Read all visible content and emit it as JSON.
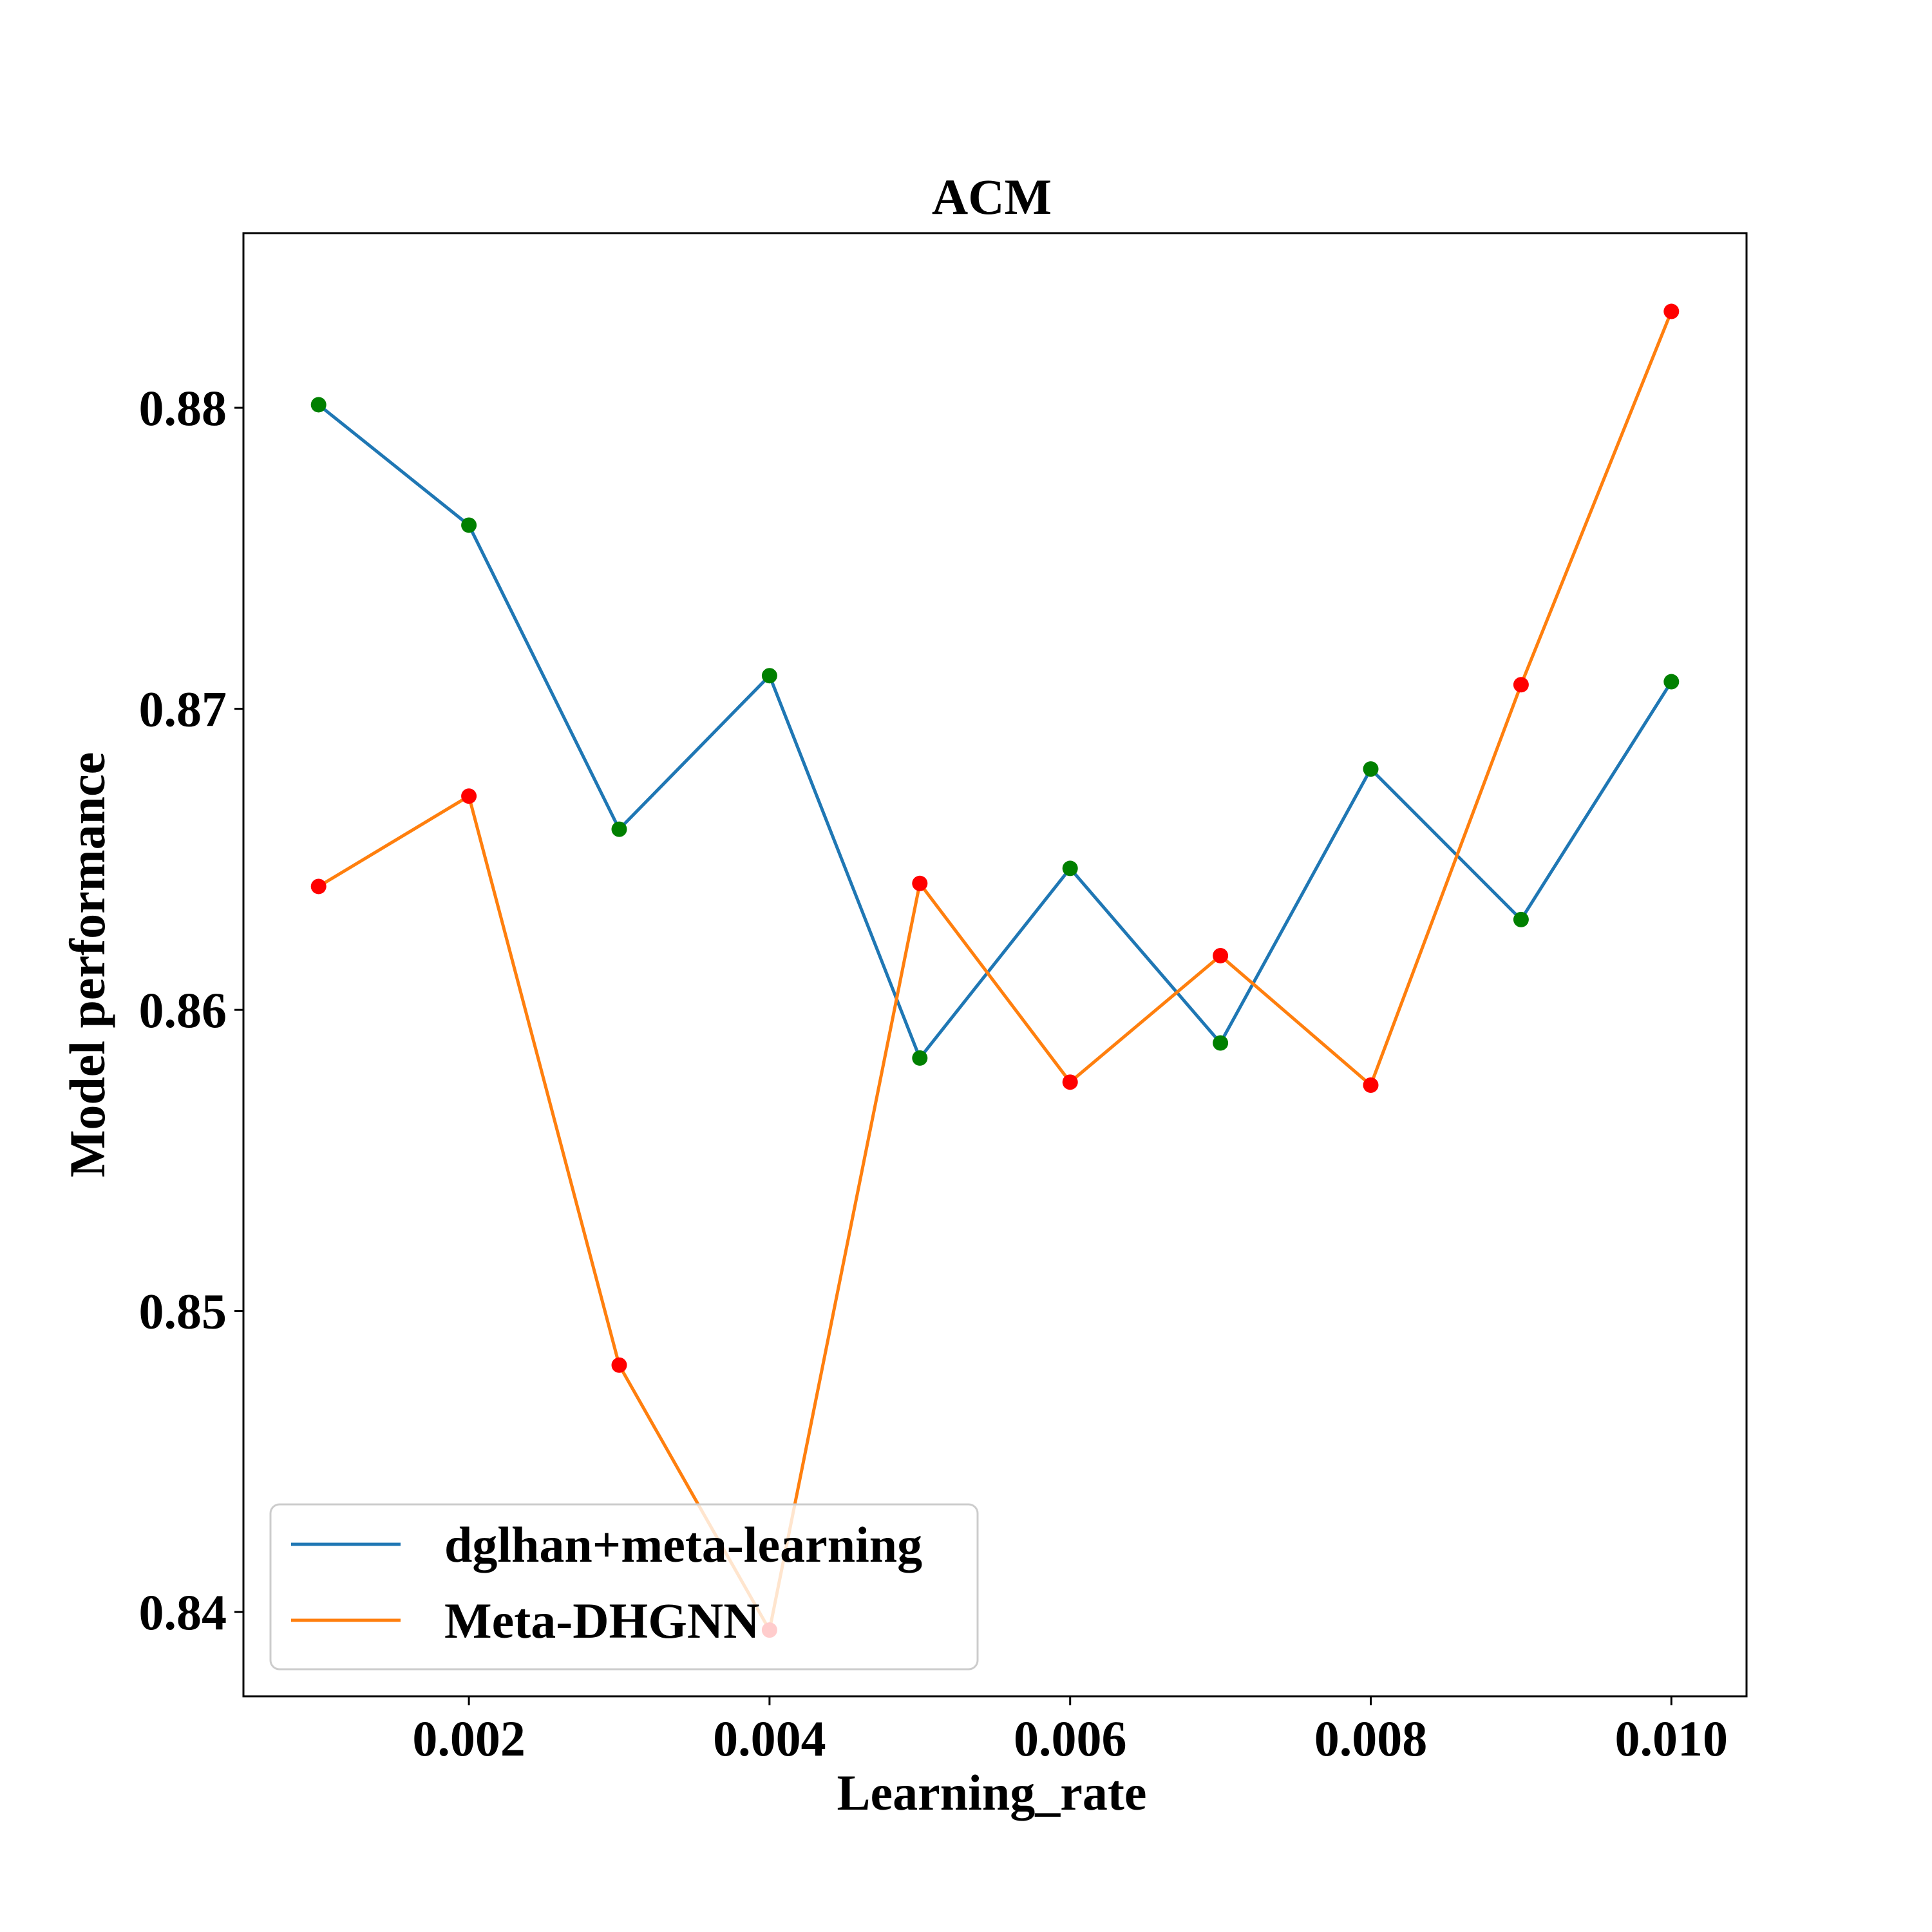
{
  "chart_data": {
    "type": "line",
    "title": "ACM",
    "xlabel": "Learning_rate",
    "ylabel": "Model performance",
    "x": [
      0.001,
      0.002,
      0.003,
      0.004,
      0.005,
      0.006,
      0.007,
      0.008,
      0.009,
      0.01
    ],
    "xlim": [
      0.0005,
      0.0105
    ],
    "ylim": [
      0.8372,
      0.8858
    ],
    "xticks": [
      0.002,
      0.004,
      0.006,
      0.008,
      0.01
    ],
    "xtick_labels": [
      "0.002",
      "0.004",
      "0.006",
      "0.008",
      "0.010"
    ],
    "yticks": [
      0.84,
      0.85,
      0.86,
      0.87,
      0.88
    ],
    "ytick_labels": [
      "0.84",
      "0.85",
      "0.86",
      "0.87",
      "0.88"
    ],
    "grid": false,
    "legend_position": "lower-left",
    "series": [
      {
        "name": "dglhan+meta-learning",
        "values": [
          0.8801,
          0.8761,
          0.866,
          0.8711,
          0.8584,
          0.8647,
          0.8589,
          0.868,
          0.863,
          0.8709
        ],
        "line_color": "#1f77b4",
        "marker_color": "#008000"
      },
      {
        "name": "Meta-DHGNN",
        "values": [
          0.8641,
          0.8671,
          0.8482,
          0.8394,
          0.8642,
          0.8576,
          0.8618,
          0.8575,
          0.8708,
          0.8832
        ],
        "line_color": "#ff7f0e",
        "marker_color": "#ff0000"
      }
    ]
  }
}
